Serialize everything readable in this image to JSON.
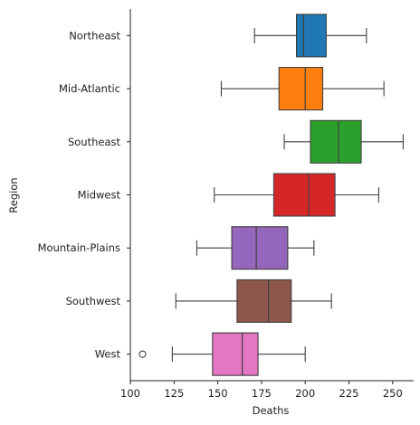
{
  "chart_data": {
    "type": "boxplot",
    "orientation": "horizontal",
    "xlabel": "Deaths",
    "ylabel": "Region",
    "xlim": [
      100,
      262
    ],
    "xticks": [
      100,
      125,
      150,
      175,
      200,
      225,
      250
    ],
    "grid": false,
    "legend": "none",
    "categories": [
      "Northeast",
      "Mid-Atlantic",
      "Southeast",
      "Midwest",
      "Mountain-Plains",
      "Southwest",
      "West"
    ],
    "series": [
      {
        "category": "Northeast",
        "color": "#1f77b4",
        "whisker_low": 171,
        "q1": 195,
        "median": 199,
        "q3": 212,
        "whisker_high": 235,
        "outliers": []
      },
      {
        "category": "Mid-Atlantic",
        "color": "#ff7f0e",
        "whisker_low": 152,
        "q1": 185,
        "median": 200,
        "q3": 210,
        "whisker_high": 245,
        "outliers": []
      },
      {
        "category": "Southeast",
        "color": "#2ca02c",
        "whisker_low": 188,
        "q1": 203,
        "median": 219,
        "q3": 232,
        "whisker_high": 256,
        "outliers": []
      },
      {
        "category": "Midwest",
        "color": "#d62728",
        "whisker_low": 148,
        "q1": 182,
        "median": 202,
        "q3": 217,
        "whisker_high": 242,
        "outliers": []
      },
      {
        "category": "Mountain-Plains",
        "color": "#9467bd",
        "whisker_low": 138,
        "q1": 158,
        "median": 172,
        "q3": 190,
        "whisker_high": 205,
        "outliers": []
      },
      {
        "category": "Southwest",
        "color": "#8c564b",
        "whisker_low": 126,
        "q1": 161,
        "median": 179,
        "q3": 192,
        "whisker_high": 215,
        "outliers": []
      },
      {
        "category": "West",
        "color": "#e377c2",
        "whisker_low": 124,
        "q1": 147,
        "median": 164,
        "q3": 173,
        "whisker_high": 200,
        "outliers": [
          107
        ]
      }
    ]
  }
}
